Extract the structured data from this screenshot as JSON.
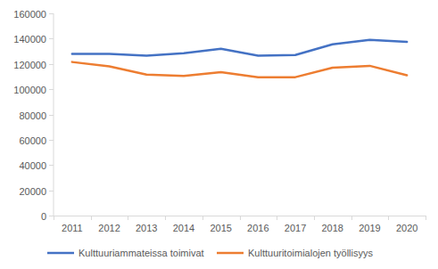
{
  "chart_data": {
    "type": "line",
    "categories": [
      "2011",
      "2012",
      "2013",
      "2014",
      "2015",
      "2016",
      "2017",
      "2018",
      "2019",
      "2020"
    ],
    "series": [
      {
        "name": "Kulttuuriammateissa toimivat",
        "color": "#4472c4",
        "values": [
          128000,
          128000,
          126500,
          128500,
          132000,
          126500,
          127000,
          135500,
          139000,
          137500
        ]
      },
      {
        "name": "Kulttuuritoimialojen työllisyys",
        "color": "#ed7d31",
        "values": [
          121500,
          118000,
          111500,
          110500,
          113500,
          109500,
          109500,
          117000,
          118500,
          111000
        ]
      }
    ],
    "ylim": [
      0,
      160000
    ],
    "yticks": [
      0,
      20000,
      40000,
      60000,
      80000,
      100000,
      120000,
      140000,
      160000
    ],
    "grid": false,
    "legend": "bottom"
  }
}
